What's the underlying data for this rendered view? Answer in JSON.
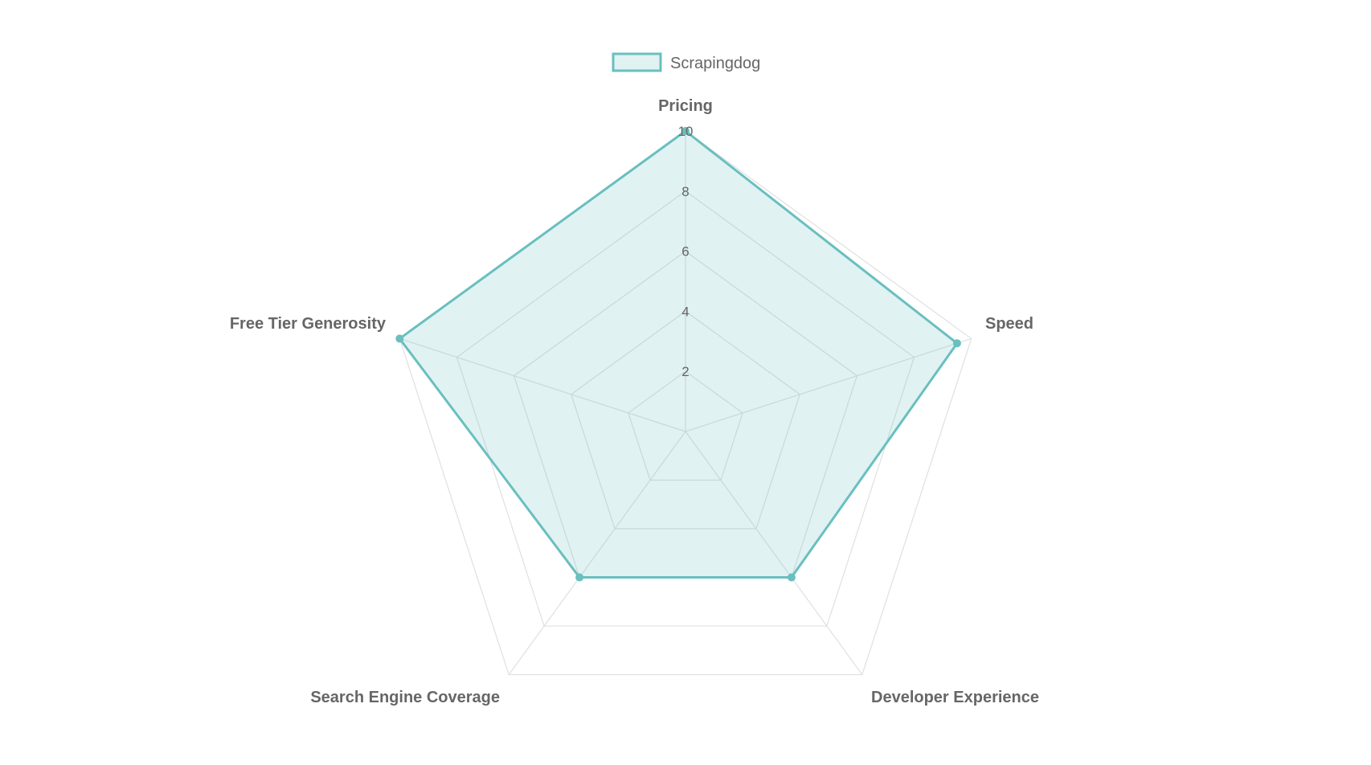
{
  "chart_data": {
    "type": "radar",
    "title": "",
    "axes": [
      "Pricing",
      "Speed",
      "Developer Experience",
      "Search Engine Coverage",
      "Free Tier Generosity"
    ],
    "series": [
      {
        "name": "Scrapingdog",
        "values": [
          10,
          9.5,
          6,
          6,
          10
        ]
      }
    ],
    "r_range": [
      0,
      10
    ],
    "ticks": [
      2,
      4,
      6,
      8,
      10
    ],
    "grid": true,
    "legend_position": "top",
    "colors": {
      "series_line": "#6abfbf",
      "series_fill": "rgba(106,191,191,0.2)",
      "grid": "#e0e0e0",
      "text": "#666666"
    }
  }
}
